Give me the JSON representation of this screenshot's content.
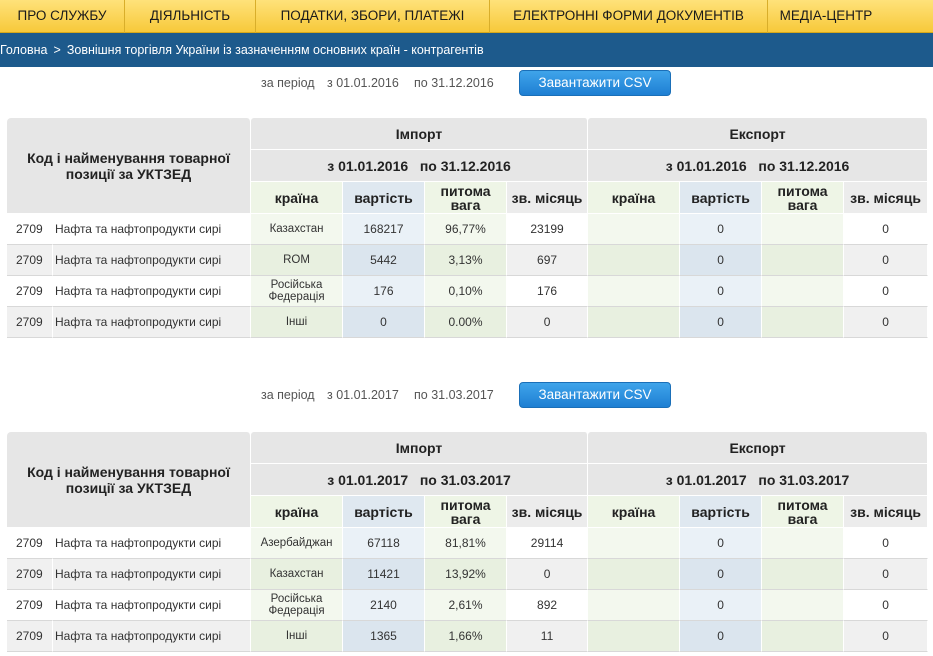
{
  "nav": {
    "items": [
      {
        "label": "ПРО СЛУЖБУ"
      },
      {
        "label": "ДІЯЛЬНІСТЬ"
      },
      {
        "label": "ПОДАТКИ, ЗБОРИ, ПЛАТЕЖІ"
      },
      {
        "label": "ЕЛЕКТРОННІ ФОРМИ ДОКУМЕНТІВ"
      },
      {
        "label": "МЕДІА-ЦЕНТР"
      },
      {
        "label": ""
      }
    ]
  },
  "breadcrumb": {
    "home": "Головна",
    "separator": ">",
    "current": "Зовнішня торгівля України із зазначенням основних країн - контрагентів"
  },
  "colors": {
    "nav_bg": "#f7c93a",
    "breadcrumb_bg": "#1d5a8c",
    "csv_button": "#2b8fdf"
  },
  "tables": [
    {
      "period_label": "за період",
      "from_label": "з 01.01.2016",
      "to_label": "по 31.12.2016",
      "csv_button": "Завантажити CSV",
      "name_header": "Код і найменування товарної позиції за УКТЗЕД",
      "import_header": "Імпорт",
      "export_header": "Експорт",
      "import_period": "з 01.01.2016   по 31.12.2016",
      "export_period": "з 01.01.2016   по 31.12.2016",
      "columns": [
        "країна",
        "вартість",
        "питома вага",
        "зв. місяць"
      ],
      "rows": [
        {
          "code": "2709",
          "name": "Нафта та нафтопродукти сирі",
          "imp_country": "Казахстан",
          "imp_value": "168217",
          "imp_share": "96,77%",
          "imp_month": "23199",
          "exp_country": "",
          "exp_value": "0",
          "exp_share": "",
          "exp_month": "0"
        },
        {
          "code": "2709",
          "name": "Нафта та нафтопродукти сирі",
          "imp_country": "ROM",
          "imp_value": "5442",
          "imp_share": "3,13%",
          "imp_month": "697",
          "exp_country": "",
          "exp_value": "0",
          "exp_share": "",
          "exp_month": "0"
        },
        {
          "code": "2709",
          "name": "Нафта та нафтопродукти сирі",
          "imp_country": "Російська Федерація",
          "imp_value": "176",
          "imp_share": "0,10%",
          "imp_month": "176",
          "exp_country": "",
          "exp_value": "0",
          "exp_share": "",
          "exp_month": "0"
        },
        {
          "code": "2709",
          "name": "Нафта та нафтопродукти сирі",
          "imp_country": "Інші",
          "imp_value": "0",
          "imp_share": "0.00%",
          "imp_month": "0",
          "exp_country": "",
          "exp_value": "0",
          "exp_share": "",
          "exp_month": "0"
        }
      ]
    },
    {
      "period_label": "за період",
      "from_label": "з 01.01.2017",
      "to_label": "по 31.03.2017",
      "csv_button": "Завантажити CSV",
      "name_header": "Код і найменування товарної позиції за УКТЗЕД",
      "import_header": "Імпорт",
      "export_header": "Експорт",
      "import_period": "з 01.01.2017   по 31.03.2017",
      "export_period": "з 01.01.2017   по 31.03.2017",
      "columns": [
        "країна",
        "вартість",
        "питома вага",
        "зв. місяць"
      ],
      "rows": [
        {
          "code": "2709",
          "name": "Нафта та нафтопродукти сирі",
          "imp_country": "Азербайджан",
          "imp_value": "67118",
          "imp_share": "81,81%",
          "imp_month": "29114",
          "exp_country": "",
          "exp_value": "0",
          "exp_share": "",
          "exp_month": "0"
        },
        {
          "code": "2709",
          "name": "Нафта та нафтопродукти сирі",
          "imp_country": "Казахстан",
          "imp_value": "11421",
          "imp_share": "13,92%",
          "imp_month": "0",
          "exp_country": "",
          "exp_value": "0",
          "exp_share": "",
          "exp_month": "0"
        },
        {
          "code": "2709",
          "name": "Нафта та нафтопродукти сирі",
          "imp_country": "Російська Федерація",
          "imp_value": "2140",
          "imp_share": "2,61%",
          "imp_month": "892",
          "exp_country": "",
          "exp_value": "0",
          "exp_share": "",
          "exp_month": "0"
        },
        {
          "code": "2709",
          "name": "Нафта та нафтопродукти сирі",
          "imp_country": "Інші",
          "imp_value": "1365",
          "imp_share": "1,66%",
          "imp_month": "11",
          "exp_country": "",
          "exp_value": "0",
          "exp_share": "",
          "exp_month": "0"
        }
      ]
    }
  ]
}
